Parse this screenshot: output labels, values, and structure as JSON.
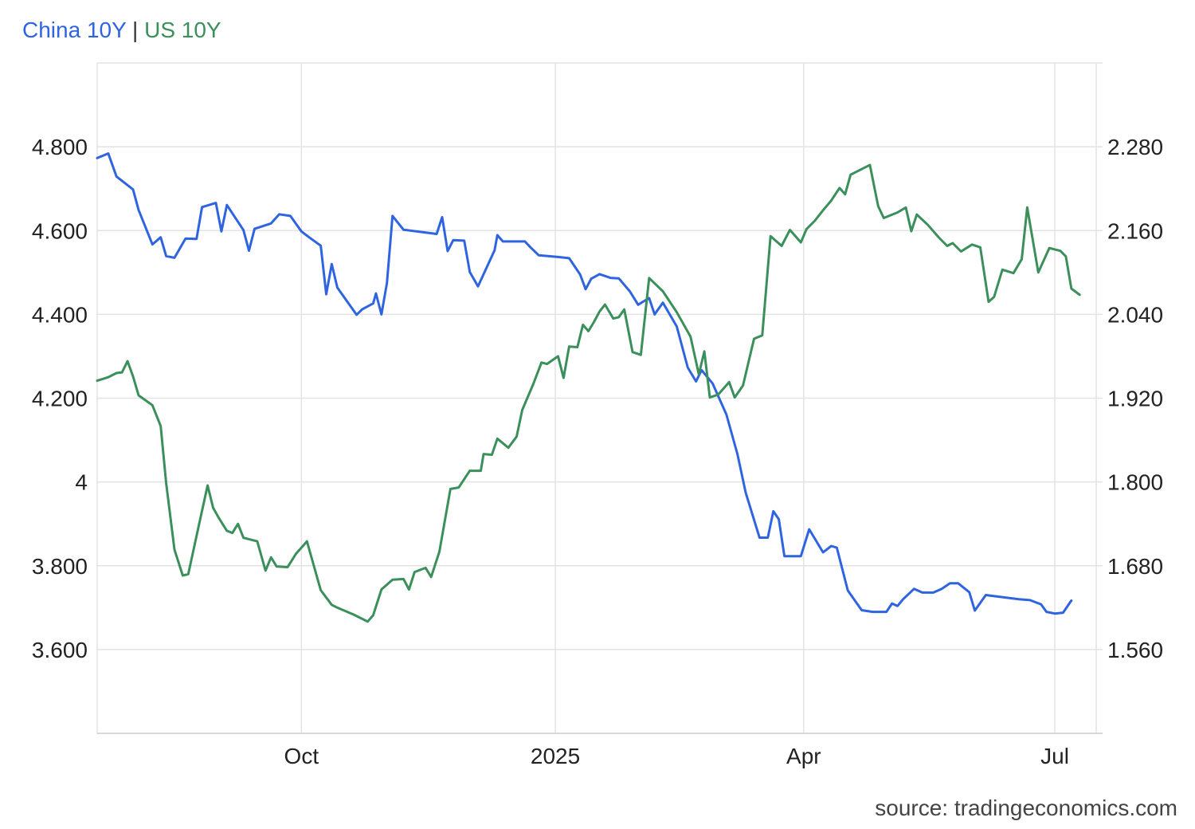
{
  "legend": {
    "series_a": "China 10Y",
    "separator": "|",
    "series_b": "US 10Y"
  },
  "source": "source: tradingeconomics.com",
  "chart_data": {
    "type": "line",
    "grid": true,
    "legend_placement": "top-left",
    "x_ticks": [
      "Oct",
      "2025",
      "Apr",
      "Jul"
    ],
    "x_range": [
      "2024-07-19",
      "2025-07-16"
    ],
    "left_axis": {
      "ticks": [
        "4.800",
        "4.600",
        "4.400",
        "4.200",
        "4",
        "3.800",
        "3.600"
      ],
      "range": [
        3.4,
        5.0
      ]
    },
    "right_axis": {
      "ticks": [
        "2.280",
        "2.160",
        "2.040",
        "1.920",
        "1.800",
        "1.680",
        "1.560"
      ],
      "range": [
        1.44,
        2.4
      ]
    },
    "colors": {
      "china": "#2f64e0",
      "us": "#3a8f5a"
    },
    "series": [
      {
        "name": "China 10Y",
        "axis": "left",
        "values": [
          [
            "2024-07-19",
            4.773
          ],
          [
            "2024-07-23",
            4.784
          ],
          [
            "2024-07-26",
            4.729
          ],
          [
            "2024-08-01",
            4.698
          ],
          [
            "2024-08-03",
            4.649
          ],
          [
            "2024-08-08",
            4.567
          ],
          [
            "2024-08-11",
            4.584
          ],
          [
            "2024-08-13",
            4.539
          ],
          [
            "2024-08-16",
            4.535
          ],
          [
            "2024-08-20",
            4.581
          ],
          [
            "2024-08-24",
            4.58
          ],
          [
            "2024-08-26",
            4.656
          ],
          [
            "2024-08-31",
            4.666
          ],
          [
            "2024-09-02",
            4.598
          ],
          [
            "2024-09-04",
            4.661
          ],
          [
            "2024-09-10",
            4.601
          ],
          [
            "2024-09-12",
            4.552
          ],
          [
            "2024-09-14",
            4.604
          ],
          [
            "2024-09-20",
            4.617
          ],
          [
            "2024-09-23",
            4.639
          ],
          [
            "2024-09-27",
            4.635
          ],
          [
            "2024-10-01",
            4.598
          ],
          [
            "2024-10-04",
            4.583
          ],
          [
            "2024-10-08",
            4.564
          ],
          [
            "2024-10-10",
            4.448
          ],
          [
            "2024-10-12",
            4.52
          ],
          [
            "2024-10-14",
            4.464
          ],
          [
            "2024-10-21",
            4.399
          ],
          [
            "2024-10-23",
            4.412
          ],
          [
            "2024-10-27",
            4.426
          ],
          [
            "2024-10-28",
            4.45
          ],
          [
            "2024-10-30",
            4.4
          ],
          [
            "2024-11-01",
            4.475
          ],
          [
            "2024-11-03",
            4.635
          ],
          [
            "2024-11-07",
            4.602
          ],
          [
            "2024-11-19",
            4.592
          ],
          [
            "2024-11-21",
            4.632
          ],
          [
            "2024-11-23",
            4.551
          ],
          [
            "2024-11-25",
            4.577
          ],
          [
            "2024-11-29",
            4.576
          ],
          [
            "2024-12-01",
            4.501
          ],
          [
            "2024-12-04",
            4.467
          ],
          [
            "2024-12-10",
            4.553
          ],
          [
            "2024-12-11",
            4.589
          ],
          [
            "2024-12-13",
            4.574
          ],
          [
            "2024-12-21",
            4.574
          ],
          [
            "2024-12-23",
            4.56
          ],
          [
            "2024-12-26",
            4.541
          ],
          [
            "2025-01-02",
            4.537
          ],
          [
            "2025-01-06",
            4.534
          ],
          [
            "2025-01-10",
            4.495
          ],
          [
            "2025-01-12",
            4.46
          ],
          [
            "2025-01-14",
            4.485
          ],
          [
            "2025-01-17",
            4.496
          ],
          [
            "2025-01-21",
            4.487
          ],
          [
            "2025-01-24",
            4.486
          ],
          [
            "2025-01-28",
            4.455
          ],
          [
            "2025-01-31",
            4.423
          ],
          [
            "2025-02-04",
            4.439
          ],
          [
            "2025-02-06",
            4.4
          ],
          [
            "2025-02-09",
            4.428
          ],
          [
            "2025-02-14",
            4.371
          ],
          [
            "2025-02-18",
            4.273
          ],
          [
            "2025-02-21",
            4.24
          ],
          [
            "2025-02-23",
            4.267
          ],
          [
            "2025-02-27",
            4.235
          ],
          [
            "2025-03-04",
            4.161
          ],
          [
            "2025-03-08",
            4.066
          ],
          [
            "2025-03-11",
            3.974
          ],
          [
            "2025-03-16",
            3.867
          ],
          [
            "2025-03-19",
            3.867
          ],
          [
            "2025-03-21",
            3.93
          ],
          [
            "2025-03-23",
            3.911
          ],
          [
            "2025-03-25",
            3.823
          ],
          [
            "2025-03-31",
            3.823
          ],
          [
            "2025-04-03",
            3.887
          ],
          [
            "2025-04-08",
            3.832
          ],
          [
            "2025-04-11",
            3.847
          ],
          [
            "2025-04-13",
            3.843
          ],
          [
            "2025-04-17",
            3.741
          ],
          [
            "2025-04-22",
            3.694
          ],
          [
            "2025-04-26",
            3.69
          ],
          [
            "2025-05-01",
            3.69
          ],
          [
            "2025-05-03",
            3.71
          ],
          [
            "2025-05-05",
            3.704
          ],
          [
            "2025-05-07",
            3.72
          ],
          [
            "2025-05-11",
            3.745
          ],
          [
            "2025-05-14",
            3.736
          ],
          [
            "2025-05-18",
            3.736
          ],
          [
            "2025-05-21",
            3.745
          ],
          [
            "2025-05-24",
            3.758
          ],
          [
            "2025-05-27",
            3.758
          ],
          [
            "2025-05-31",
            3.737
          ],
          [
            "2025-06-02",
            3.693
          ],
          [
            "2025-06-06",
            3.73
          ],
          [
            "2025-06-18",
            3.72
          ],
          [
            "2025-06-22",
            3.718
          ],
          [
            "2025-06-26",
            3.708
          ],
          [
            "2025-06-28",
            3.69
          ],
          [
            "2025-07-01",
            3.686
          ],
          [
            "2025-07-04",
            3.688
          ],
          [
            "2025-07-07",
            3.717
          ]
        ]
      },
      {
        "name": "US 10Y",
        "axis": "right",
        "values": [
          [
            "2024-07-19",
            1.945
          ],
          [
            "2024-07-23",
            1.95
          ],
          [
            "2024-07-26",
            1.956
          ],
          [
            "2024-07-28",
            1.957
          ],
          [
            "2024-07-30",
            1.973
          ],
          [
            "2024-08-01",
            1.951
          ],
          [
            "2024-08-03",
            1.924
          ],
          [
            "2024-08-08",
            1.91
          ],
          [
            "2024-08-11",
            1.88
          ],
          [
            "2024-08-13",
            1.798
          ],
          [
            "2024-08-16",
            1.703
          ],
          [
            "2024-08-19",
            1.666
          ],
          [
            "2024-08-21",
            1.668
          ],
          [
            "2024-08-25",
            1.741
          ],
          [
            "2024-08-28",
            1.795
          ],
          [
            "2024-08-30",
            1.763
          ],
          [
            "2024-09-01",
            1.749
          ],
          [
            "2024-09-04",
            1.73
          ],
          [
            "2024-09-06",
            1.727
          ],
          [
            "2024-09-08",
            1.74
          ],
          [
            "2024-09-10",
            1.72
          ],
          [
            "2024-09-15",
            1.715
          ],
          [
            "2024-09-18",
            1.673
          ],
          [
            "2024-09-20",
            1.692
          ],
          [
            "2024-09-22",
            1.679
          ],
          [
            "2024-09-26",
            1.678
          ],
          [
            "2024-09-29",
            1.697
          ],
          [
            "2024-10-03",
            1.715
          ],
          [
            "2024-10-08",
            1.645
          ],
          [
            "2024-10-12",
            1.624
          ],
          [
            "2024-10-14",
            1.62
          ],
          [
            "2024-10-20",
            1.61
          ],
          [
            "2024-10-25",
            1.6
          ],
          [
            "2024-10-27",
            1.609
          ],
          [
            "2024-10-30",
            1.646
          ],
          [
            "2024-11-03",
            1.66
          ],
          [
            "2024-11-07",
            1.661
          ],
          [
            "2024-11-09",
            1.646
          ],
          [
            "2024-11-11",
            1.671
          ],
          [
            "2024-11-15",
            1.677
          ],
          [
            "2024-11-17",
            1.664
          ],
          [
            "2024-11-20",
            1.7
          ],
          [
            "2024-11-24",
            1.79
          ],
          [
            "2024-11-27",
            1.792
          ],
          [
            "2024-12-01",
            1.816
          ],
          [
            "2024-12-05",
            1.816
          ],
          [
            "2024-12-06",
            1.84
          ],
          [
            "2024-12-09",
            1.839
          ],
          [
            "2024-12-11",
            1.862
          ],
          [
            "2024-12-15",
            1.849
          ],
          [
            "2024-12-18",
            1.865
          ],
          [
            "2024-12-20",
            1.903
          ],
          [
            "2024-12-24",
            1.94
          ],
          [
            "2024-12-27",
            1.971
          ],
          [
            "2024-12-29",
            1.969
          ],
          [
            "2025-01-02",
            1.98
          ],
          [
            "2025-01-04",
            1.949
          ],
          [
            "2025-01-06",
            1.994
          ],
          [
            "2025-01-09",
            1.993
          ],
          [
            "2025-01-11",
            2.025
          ],
          [
            "2025-01-13",
            2.016
          ],
          [
            "2025-01-15",
            2.029
          ],
          [
            "2025-01-17",
            2.044
          ],
          [
            "2025-01-19",
            2.054
          ],
          [
            "2025-01-22",
            2.034
          ],
          [
            "2025-01-24",
            2.036
          ],
          [
            "2025-01-26",
            2.047
          ],
          [
            "2025-01-29",
            1.986
          ],
          [
            "2025-02-01",
            1.982
          ],
          [
            "2025-02-04",
            2.092
          ],
          [
            "2025-02-09",
            2.073
          ],
          [
            "2025-02-14",
            2.043
          ],
          [
            "2025-02-19",
            2.008
          ],
          [
            "2025-02-22",
            1.954
          ],
          [
            "2025-02-24",
            1.987
          ],
          [
            "2025-02-26",
            1.921
          ],
          [
            "2025-03-01",
            1.925
          ],
          [
            "2025-03-05",
            1.943
          ],
          [
            "2025-03-07",
            1.921
          ],
          [
            "2025-03-10",
            1.938
          ],
          [
            "2025-03-14",
            2.005
          ],
          [
            "2025-03-17",
            2.01
          ],
          [
            "2025-03-20",
            2.152
          ],
          [
            "2025-03-24",
            2.138
          ],
          [
            "2025-03-27",
            2.161
          ],
          [
            "2025-03-31",
            2.143
          ],
          [
            "2025-04-02",
            2.162
          ],
          [
            "2025-04-05",
            2.174
          ],
          [
            "2025-04-08",
            2.189
          ],
          [
            "2025-04-11",
            2.203
          ],
          [
            "2025-04-14",
            2.221
          ],
          [
            "2025-04-16",
            2.212
          ],
          [
            "2025-04-18",
            2.24
          ],
          [
            "2025-04-25",
            2.254
          ],
          [
            "2025-04-28",
            2.195
          ],
          [
            "2025-04-30",
            2.178
          ],
          [
            "2025-05-05",
            2.186
          ],
          [
            "2025-05-08",
            2.193
          ],
          [
            "2025-05-10",
            2.159
          ],
          [
            "2025-05-12",
            2.183
          ],
          [
            "2025-05-16",
            2.168
          ],
          [
            "2025-05-20",
            2.15
          ],
          [
            "2025-05-23",
            2.138
          ],
          [
            "2025-05-25",
            2.142
          ],
          [
            "2025-05-28",
            2.13
          ],
          [
            "2025-06-01",
            2.14
          ],
          [
            "2025-06-04",
            2.136
          ],
          [
            "2025-06-07",
            2.058
          ],
          [
            "2025-06-09",
            2.065
          ],
          [
            "2025-06-12",
            2.104
          ],
          [
            "2025-06-16",
            2.099
          ],
          [
            "2025-06-19",
            2.119
          ],
          [
            "2025-06-21",
            2.193
          ],
          [
            "2025-06-25",
            2.1
          ],
          [
            "2025-06-29",
            2.135
          ],
          [
            "2025-07-03",
            2.131
          ],
          [
            "2025-07-05",
            2.123
          ],
          [
            "2025-07-07",
            2.077
          ],
          [
            "2025-07-10",
            2.068
          ]
        ]
      }
    ]
  }
}
